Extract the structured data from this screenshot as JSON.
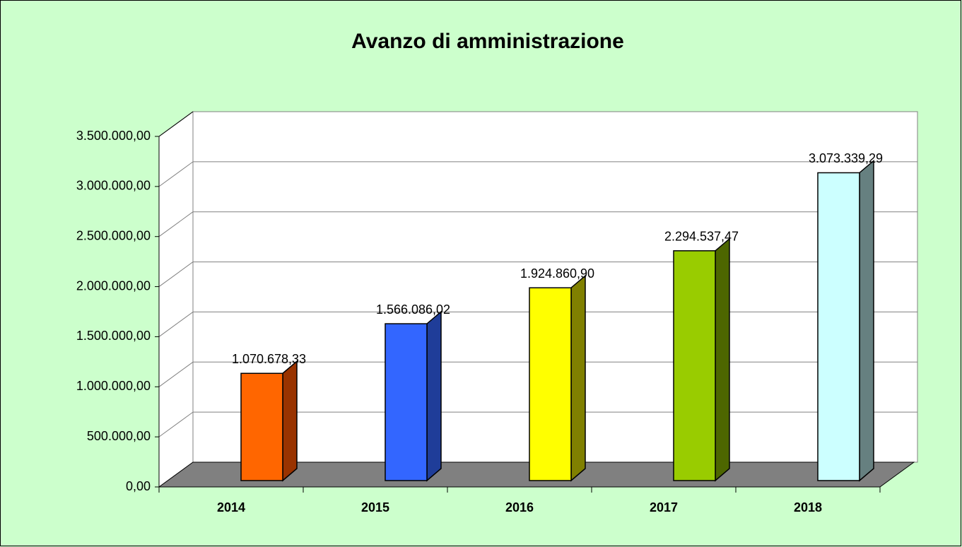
{
  "chart_data": {
    "type": "bar",
    "title": "Avanzo di amministrazione",
    "categories": [
      "2014",
      "2015",
      "2016",
      "2017",
      "2018"
    ],
    "values": [
      1070678.33,
      1566086.02,
      1924860.9,
      2294537.47,
      3073339.29
    ],
    "value_labels": [
      "1.070.678,33",
      "1.566.086,02",
      "1.924.860,90",
      "2.294.537,47",
      "3.073.339,29"
    ],
    "colors": [
      "#ff6600",
      "#3366ff",
      "#ffff00",
      "#99cc00",
      "#ccffff"
    ],
    "side_colors": [
      "#993300",
      "#1f3d99",
      "#808000",
      "#4d6600",
      "#668080"
    ],
    "ylim": [
      0,
      3500000
    ],
    "yticks": [
      {
        "value": 0,
        "label": "0,00"
      },
      {
        "value": 500000,
        "label": "500.000,00"
      },
      {
        "value": 1000000,
        "label": "1.000.000,00"
      },
      {
        "value": 1500000,
        "label": "1.500.000,00"
      },
      {
        "value": 2000000,
        "label": "2.000.000,00"
      },
      {
        "value": 2500000,
        "label": "2.500.000,00"
      },
      {
        "value": 3000000,
        "label": "3.000.000,00"
      },
      {
        "value": 3500000,
        "label": "3.500.000,00"
      }
    ],
    "grid": true
  }
}
